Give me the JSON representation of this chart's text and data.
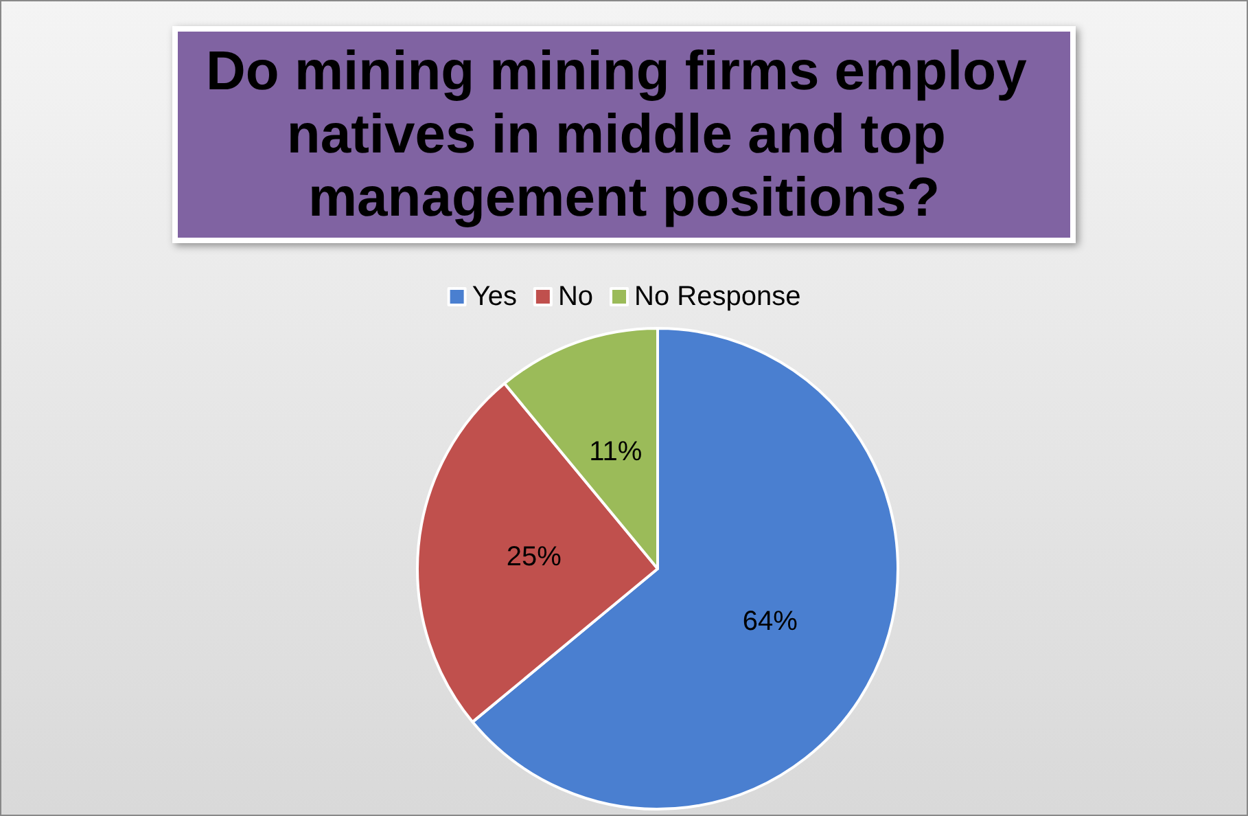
{
  "chart_data": {
    "type": "pie",
    "title": "Do mining mining firms employ natives in middle and top management positions?",
    "categories": [
      "Yes",
      "No",
      "No Response"
    ],
    "values": [
      64,
      25,
      11
    ],
    "colors": [
      "#4a7fd0",
      "#c0504d",
      "#9bbb59"
    ],
    "value_labels": [
      "64%",
      "25%",
      "11%"
    ],
    "legend": "top"
  }
}
